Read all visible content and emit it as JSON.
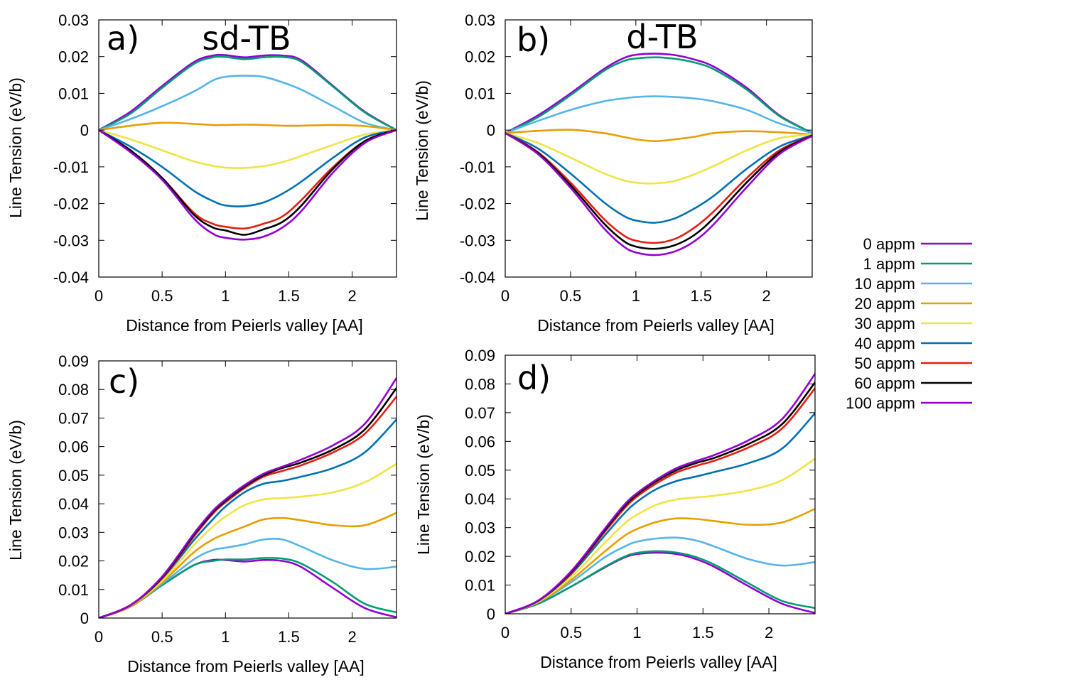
{
  "legend": {
    "entries": [
      {
        "label": "0 appm",
        "color": "#9400d3"
      },
      {
        "label": "1 appm",
        "color": "#009e73"
      },
      {
        "label": "10 appm",
        "color": "#56b4e9"
      },
      {
        "label": "20 appm",
        "color": "#e69f00"
      },
      {
        "label": "30 appm",
        "color": "#f0e442"
      },
      {
        "label": "40 appm",
        "color": "#0072b2"
      },
      {
        "label": "50 appm",
        "color": "#e51e10"
      },
      {
        "label": "60 appm",
        "color": "#000000"
      },
      {
        "label": "100 appm",
        "color": "#9400d3"
      }
    ]
  },
  "chart_data": [
    {
      "type": "line",
      "panel_label": "a)",
      "title": "sd-TB",
      "xlabel": "Distance from Peierls valley [AA]",
      "ylabel": "Line Tension (eV/b)",
      "xlim": [
        0,
        2.35
      ],
      "ylim": [
        -0.04,
        0.03
      ],
      "xticks": [
        "0",
        "0.5",
        "1",
        "1.5",
        "2"
      ],
      "yticks": [
        "-0.04",
        "-0.03",
        "-0.02",
        "-0.01",
        "0",
        "0.01",
        "0.02",
        "0.03"
      ],
      "x": [
        0,
        0.25,
        0.5,
        0.75,
        0.9,
        1.0,
        1.15,
        1.3,
        1.45,
        1.6,
        1.85,
        2.1,
        2.35
      ],
      "series": [
        {
          "name": "0 appm",
          "values": [
            0,
            0.005,
            0.012,
            0.0185,
            0.0203,
            0.0204,
            0.0198,
            0.0203,
            0.0203,
            0.019,
            0.012,
            0.005,
            0
          ]
        },
        {
          "name": "1 appm",
          "values": [
            0,
            0.0045,
            0.0115,
            0.018,
            0.0198,
            0.0199,
            0.0193,
            0.0198,
            0.0199,
            0.0186,
            0.0118,
            0.0048,
            0
          ]
        },
        {
          "name": "10 appm",
          "values": [
            0,
            0.003,
            0.0065,
            0.0105,
            0.0135,
            0.0145,
            0.0148,
            0.0145,
            0.013,
            0.011,
            0.0065,
            0.002,
            0
          ]
        },
        {
          "name": "20 appm",
          "values": [
            0,
            0.0012,
            0.002,
            0.0017,
            0.0014,
            0.0014,
            0.0015,
            0.0014,
            0.0012,
            0.0012,
            0.0014,
            0.0011,
            0
          ]
        },
        {
          "name": "30 appm",
          "values": [
            0,
            -0.0025,
            -0.0055,
            -0.0085,
            -0.0097,
            -0.0102,
            -0.0103,
            -0.0098,
            -0.0087,
            -0.007,
            -0.004,
            -0.0012,
            0
          ]
        },
        {
          "name": "40 appm",
          "values": [
            0,
            -0.0045,
            -0.01,
            -0.0165,
            -0.0193,
            -0.0205,
            -0.0207,
            -0.0197,
            -0.0173,
            -0.014,
            -0.0075,
            -0.002,
            0
          ]
        },
        {
          "name": "50 appm",
          "values": [
            0,
            -0.0055,
            -0.013,
            -0.0225,
            -0.0255,
            -0.0263,
            -0.0268,
            -0.0255,
            -0.0235,
            -0.019,
            -0.01,
            -0.003,
            0
          ]
        },
        {
          "name": "60 appm",
          "values": [
            0,
            -0.0055,
            -0.013,
            -0.023,
            -0.0265,
            -0.0273,
            -0.0285,
            -0.027,
            -0.025,
            -0.0205,
            -0.0105,
            -0.003,
            0
          ]
        },
        {
          "name": "100 appm",
          "values": [
            0,
            -0.006,
            -0.0135,
            -0.024,
            -0.0282,
            -0.0293,
            -0.0298,
            -0.029,
            -0.0265,
            -0.022,
            -0.0115,
            -0.0035,
            0
          ]
        }
      ]
    },
    {
      "type": "line",
      "panel_label": "b)",
      "title": "d-TB",
      "xlabel": "Distance from Peierls valley [AA]",
      "ylabel": "Line Tension (eV/b)",
      "xlim": [
        0,
        2.35
      ],
      "ylim": [
        -0.04,
        0.03
      ],
      "xticks": [
        "0",
        "0.5",
        "1",
        "1.5",
        "2"
      ],
      "yticks": [
        "-0.04",
        "-0.03",
        "-0.02",
        "-0.01",
        "0",
        "0.01",
        "0.02",
        "0.03"
      ],
      "x": [
        0,
        0.25,
        0.5,
        0.75,
        0.9,
        1.0,
        1.15,
        1.3,
        1.45,
        1.6,
        1.85,
        2.1,
        2.35
      ],
      "series": [
        {
          "name": "0 appm",
          "values": [
            -0.0008,
            0.004,
            0.01,
            0.0165,
            0.0195,
            0.0205,
            0.0208,
            0.0204,
            0.0192,
            0.0172,
            0.0115,
            0.004,
            -0.0008
          ]
        },
        {
          "name": "1 appm",
          "values": [
            -0.0008,
            0.0035,
            0.0095,
            0.016,
            0.0187,
            0.0195,
            0.0198,
            0.0194,
            0.0184,
            0.0165,
            0.011,
            0.0038,
            -0.0008
          ]
        },
        {
          "name": "10 appm",
          "values": [
            -0.0008,
            0.0025,
            0.0055,
            0.0078,
            0.0086,
            0.009,
            0.0092,
            0.009,
            0.0086,
            0.0078,
            0.0055,
            0.0018,
            -0.0008
          ]
        },
        {
          "name": "20 appm",
          "values": [
            -0.0008,
            -0.0002,
            0.0001,
            -0.0008,
            -0.0018,
            -0.0025,
            -0.003,
            -0.0025,
            -0.0018,
            -0.0008,
            -0.0003,
            -0.0006,
            -0.0012
          ]
        },
        {
          "name": "30 appm",
          "values": [
            -0.0008,
            -0.0035,
            -0.0075,
            -0.0117,
            -0.0136,
            -0.0143,
            -0.0145,
            -0.0138,
            -0.012,
            -0.0097,
            -0.0055,
            -0.0022,
            -0.0012
          ]
        },
        {
          "name": "40 appm",
          "values": [
            -0.0008,
            -0.005,
            -0.0118,
            -0.0195,
            -0.0232,
            -0.0246,
            -0.0252,
            -0.024,
            -0.0213,
            -0.0178,
            -0.0105,
            -0.0045,
            -0.0014
          ]
        },
        {
          "name": "50 appm",
          "values": [
            -0.0008,
            -0.006,
            -0.0143,
            -0.024,
            -0.0285,
            -0.0301,
            -0.0307,
            -0.0296,
            -0.0265,
            -0.022,
            -0.013,
            -0.0055,
            -0.0015
          ]
        },
        {
          "name": "60 appm",
          "values": [
            -0.0008,
            -0.0062,
            -0.015,
            -0.0252,
            -0.03,
            -0.0317,
            -0.0323,
            -0.0313,
            -0.0285,
            -0.0238,
            -0.0142,
            -0.006,
            -0.0015
          ]
        },
        {
          "name": "100 appm",
          "values": [
            -0.0008,
            -0.0065,
            -0.0157,
            -0.0265,
            -0.0315,
            -0.0333,
            -0.034,
            -0.033,
            -0.0302,
            -0.0255,
            -0.0155,
            -0.0065,
            -0.0016
          ]
        }
      ]
    },
    {
      "type": "line",
      "panel_label": "c)",
      "title": "",
      "xlabel": "Distance from Peierls valley [AA]",
      "ylabel": "Line Tension (eV/b)",
      "xlim": [
        0,
        2.35
      ],
      "ylim": [
        0,
        0.09
      ],
      "xticks": [
        "0",
        "0.5",
        "1",
        "1.5",
        "2"
      ],
      "yticks": [
        "0",
        "0.01",
        "0.02",
        "0.03",
        "0.04",
        "0.05",
        "0.06",
        "0.07",
        "0.08",
        "0.09"
      ],
      "x": [
        0,
        0.25,
        0.5,
        0.75,
        0.9,
        1.0,
        1.15,
        1.3,
        1.45,
        1.6,
        1.85,
        2.1,
        2.35
      ],
      "series": [
        {
          "name": "0 appm",
          "values": [
            0,
            0.004,
            0.0115,
            0.0185,
            0.0203,
            0.0203,
            0.0198,
            0.0203,
            0.02,
            0.0178,
            0.0105,
            0.0035,
            0.0003
          ]
        },
        {
          "name": "1 appm",
          "values": [
            0,
            0.004,
            0.0115,
            0.0185,
            0.02,
            0.0205,
            0.0205,
            0.021,
            0.0208,
            0.019,
            0.0125,
            0.005,
            0.002
          ]
        },
        {
          "name": "10 appm",
          "values": [
            0,
            0.004,
            0.012,
            0.0205,
            0.0238,
            0.0246,
            0.0258,
            0.0275,
            0.0275,
            0.025,
            0.0202,
            0.0172,
            0.018
          ]
        },
        {
          "name": "20 appm",
          "values": [
            0,
            0.004,
            0.0125,
            0.023,
            0.0275,
            0.0295,
            0.032,
            0.0345,
            0.035,
            0.0342,
            0.0325,
            0.0325,
            0.0368
          ]
        },
        {
          "name": "30 appm",
          "values": [
            0,
            0.0045,
            0.013,
            0.0255,
            0.032,
            0.0355,
            0.0395,
            0.0415,
            0.042,
            0.0425,
            0.044,
            0.0475,
            0.054
          ]
        },
        {
          "name": "40 appm",
          "values": [
            0,
            0.0045,
            0.0138,
            0.0272,
            0.0345,
            0.039,
            0.044,
            0.047,
            0.048,
            0.0495,
            0.0525,
            0.058,
            0.0695
          ]
        },
        {
          "name": "50 appm",
          "values": [
            0,
            0.0045,
            0.014,
            0.0285,
            0.0365,
            0.0405,
            0.0455,
            0.0495,
            0.0515,
            0.0535,
            0.058,
            0.0645,
            0.0775
          ]
        },
        {
          "name": "60 appm",
          "values": [
            0,
            0.0045,
            0.0142,
            0.029,
            0.037,
            0.041,
            0.046,
            0.05,
            0.0525,
            0.0545,
            0.059,
            0.066,
            0.0805
          ]
        },
        {
          "name": "100 appm",
          "values": [
            0,
            0.0045,
            0.0145,
            0.0295,
            0.0375,
            0.0415,
            0.0465,
            0.0505,
            0.053,
            0.0555,
            0.0605,
            0.068,
            0.084
          ]
        }
      ]
    },
    {
      "type": "line",
      "panel_label": "d)",
      "title": "",
      "xlabel": "Distance from Peierls valley [AA]",
      "ylabel": "Line Tension (eV/b)",
      "xlim": [
        0,
        2.35
      ],
      "ylim": [
        0,
        0.09
      ],
      "xticks": [
        "0",
        "0.5",
        "1",
        "1.5",
        "2"
      ],
      "yticks": [
        "0",
        "0.01",
        "0.02",
        "0.03",
        "0.04",
        "0.05",
        "0.06",
        "0.07",
        "0.08",
        "0.09"
      ],
      "x": [
        0,
        0.25,
        0.5,
        0.75,
        0.9,
        1.0,
        1.15,
        1.3,
        1.45,
        1.6,
        1.85,
        2.1,
        2.35
      ],
      "series": [
        {
          "name": "0 appm",
          "values": [
            0,
            0.0035,
            0.0095,
            0.016,
            0.0195,
            0.0208,
            0.0213,
            0.0208,
            0.019,
            0.016,
            0.0095,
            0.0035,
            0.0003
          ]
        },
        {
          "name": "1 appm",
          "values": [
            0,
            0.0035,
            0.0095,
            0.0162,
            0.0198,
            0.0212,
            0.0218,
            0.0213,
            0.0197,
            0.0168,
            0.0105,
            0.0045,
            0.002
          ]
        },
        {
          "name": "10 appm",
          "values": [
            0,
            0.004,
            0.011,
            0.0195,
            0.0233,
            0.0251,
            0.0262,
            0.0265,
            0.0255,
            0.0232,
            0.019,
            0.0168,
            0.018
          ]
        },
        {
          "name": "20 appm",
          "values": [
            0,
            0.004,
            0.0118,
            0.0215,
            0.027,
            0.0295,
            0.032,
            0.0332,
            0.033,
            0.0322,
            0.031,
            0.0318,
            0.0365
          ]
        },
        {
          "name": "30 appm",
          "values": [
            0,
            0.0042,
            0.0128,
            0.0245,
            0.0312,
            0.0345,
            0.038,
            0.0398,
            0.0405,
            0.0412,
            0.043,
            0.0465,
            0.054
          ]
        },
        {
          "name": "40 appm",
          "values": [
            0,
            0.0045,
            0.0138,
            0.027,
            0.0348,
            0.039,
            0.0435,
            0.0462,
            0.0478,
            0.0495,
            0.0525,
            0.0575,
            0.0698
          ]
        },
        {
          "name": "50 appm",
          "values": [
            0,
            0.0045,
            0.0142,
            0.0282,
            0.0365,
            0.0408,
            0.0455,
            0.0492,
            0.0515,
            0.0535,
            0.058,
            0.0645,
            0.0785
          ]
        },
        {
          "name": "60 appm",
          "values": [
            0,
            0.0045,
            0.0145,
            0.0288,
            0.0372,
            0.0415,
            0.0463,
            0.05,
            0.0525,
            0.0545,
            0.0592,
            0.066,
            0.0805
          ]
        },
        {
          "name": "100 appm",
          "values": [
            0,
            0.0046,
            0.0148,
            0.0293,
            0.0378,
            0.042,
            0.0468,
            0.0507,
            0.0532,
            0.0555,
            0.0605,
            0.0678,
            0.0835
          ]
        }
      ]
    }
  ]
}
